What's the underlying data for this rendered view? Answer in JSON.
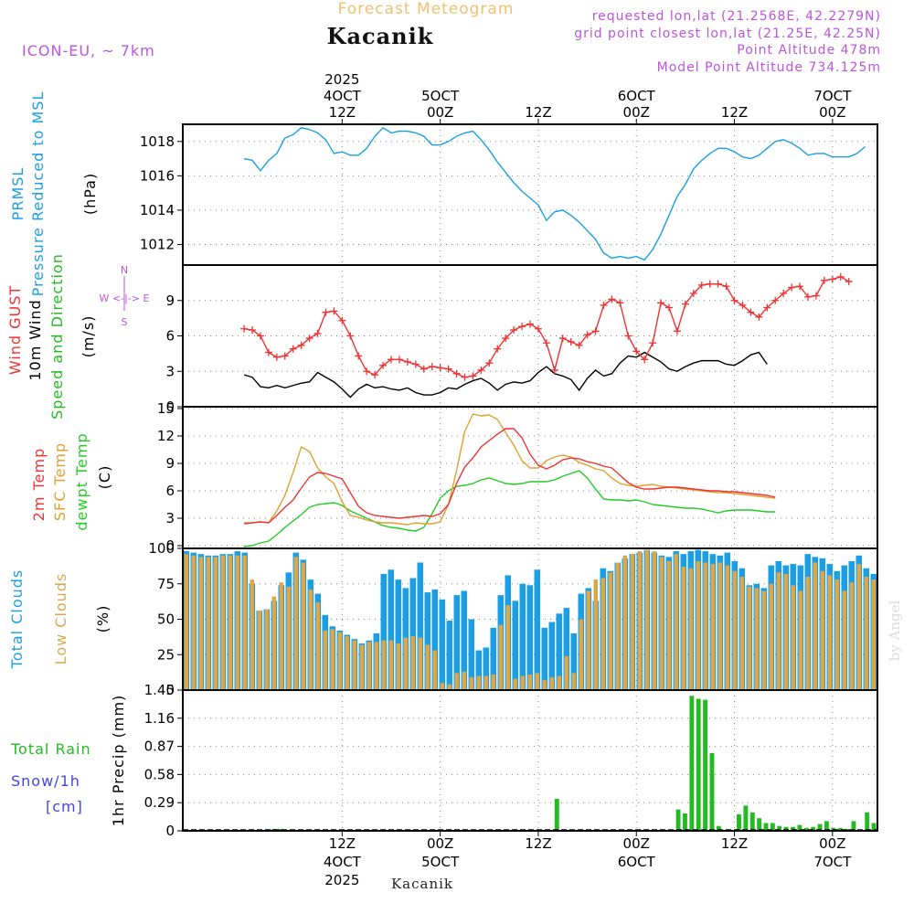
{
  "header": {
    "title": "Forecast Meteogram",
    "location": "Kacanik",
    "model": "ICON-EU, ~ 7km",
    "requested": "requested lon,lat (21.2568E, 42.2279N)",
    "grid_point": "grid point closest lon,lat (21.25E, 42.25N)",
    "point_altitude": "Point Altitude 478m",
    "model_altitude": "Model Point Altitude 734.125m"
  },
  "footer": {
    "location": "Kacanik",
    "watermark": "by Angel"
  },
  "top_axis": [
    {
      "x": 12,
      "lines": [
        "2025",
        "4OCT",
        "12Z"
      ]
    },
    {
      "x": 24,
      "lines": [
        "5OCT",
        "00Z"
      ]
    },
    {
      "x": 36,
      "lines": [
        "12Z"
      ]
    },
    {
      "x": 48,
      "lines": [
        "6OCT",
        "00Z"
      ]
    },
    {
      "x": 60,
      "lines": [
        "12Z"
      ]
    },
    {
      "x": 72,
      "lines": [
        "7OCT",
        "00Z"
      ]
    }
  ],
  "bottom_axis": [
    {
      "x": 12,
      "lines": [
        "12Z",
        "4OCT",
        "2025"
      ]
    },
    {
      "x": 24,
      "lines": [
        "00Z",
        "5OCT"
      ]
    },
    {
      "x": 36,
      "lines": [
        "12Z"
      ]
    },
    {
      "x": 48,
      "lines": [
        "00Z",
        "6OCT"
      ]
    },
    {
      "x": 60,
      "lines": [
        "12Z"
      ]
    },
    {
      "x": 72,
      "lines": [
        "00Z",
        "7OCT"
      ]
    }
  ],
  "colors": {
    "pressure": "#1a9fe6",
    "gust": "#ee3333",
    "wind": "#000000",
    "wind_dir": "#22bb22",
    "temp2m": "#ee3333",
    "sfc": "#e0a030",
    "dew": "#22cc22",
    "total_clouds": "#1a9fe6",
    "low_clouds": "#d9a84e",
    "rain": "#22bb22",
    "snow": "#4444ee",
    "header_meta": "#bb55dd",
    "title": "#f0c070"
  },
  "chart_data": [
    {
      "type": "line",
      "title": "PRMSL Pressure Reduced to MSL",
      "ylabel_lines": [
        "PRMSL",
        "Pressure Reduced to MSL"
      ],
      "unit": "(hPa)",
      "ylim": [
        1010.8,
        1019.0
      ],
      "yticks": [
        "1012",
        "1014",
        "1016",
        "1018"
      ],
      "x_start": 0,
      "x_step": 1,
      "values": [
        1017.0,
        1016.9,
        1016.3,
        1016.9,
        1017.3,
        1018.2,
        1018.4,
        1018.8,
        1018.7,
        1018.5,
        1018.1,
        1017.3,
        1017.4,
        1017.2,
        1017.2,
        1017.6,
        1018.3,
        1018.8,
        1018.5,
        1018.6,
        1018.6,
        1018.5,
        1018.3,
        1017.8,
        1017.8,
        1018.0,
        1018.3,
        1018.5,
        1018.6,
        1018.1,
        1017.5,
        1016.8,
        1016.2,
        1015.6,
        1015.1,
        1014.7,
        1014.3,
        1013.4,
        1013.9,
        1014.0,
        1013.7,
        1013.3,
        1012.8,
        1012.3,
        1011.5,
        1011.2,
        1011.3,
        1011.2,
        1011.3,
        1011.1,
        1011.7,
        1012.6,
        1013.7,
        1014.8,
        1015.5,
        1016.4,
        1016.9,
        1017.3,
        1017.6,
        1017.6,
        1017.4,
        1017.1,
        1017.0,
        1017.2,
        1017.6,
        1018.0,
        1018.1,
        1017.9,
        1017.6,
        1017.2,
        1017.3,
        1017.3,
        1017.1,
        1017.1,
        1017.1,
        1017.3,
        1017.7
      ]
    },
    {
      "type": "line",
      "title": "Wind GUST / 10m Wind Speed and Direction",
      "ylabel_lines": [
        "Wind GUST",
        "10m Wind",
        "Speed and Direction"
      ],
      "unit": "(m/s)",
      "compass": [
        "N",
        "W <-|-> E",
        "S"
      ],
      "ylim": [
        0,
        12
      ],
      "yticks": [
        "0",
        "3",
        "6",
        "9"
      ],
      "x_start": 0,
      "x_step": 1,
      "series": [
        {
          "name": "Wind GUST",
          "values": [
            6.6,
            6.5,
            6.0,
            4.6,
            4.2,
            4.3,
            4.9,
            5.2,
            5.8,
            6.2,
            8.0,
            8.1,
            7.3,
            6.0,
            4.3,
            3.0,
            2.7,
            3.5,
            4.0,
            4.0,
            3.8,
            3.6,
            3.2,
            3.4,
            3.3,
            3.2,
            2.8,
            2.5,
            2.6,
            3.1,
            3.7,
            4.9,
            5.8,
            6.5,
            6.8,
            7.0,
            6.6,
            5.4,
            3.1,
            5.8,
            5.5,
            5.2,
            6.1,
            6.4,
            8.6,
            9.1,
            8.8,
            6.0,
            4.7,
            4.0,
            5.4,
            8.8,
            8.4,
            6.4,
            8.7,
            9.6,
            10.3,
            10.4,
            10.4,
            10.2,
            9.0,
            8.6,
            8.0,
            7.6,
            8.4,
            9.0,
            9.6,
            10.1,
            10.2,
            9.3,
            9.4,
            10.7,
            10.8,
            11.0,
            10.6
          ]
        },
        {
          "name": "10m Wind",
          "values": [
            2.7,
            2.5,
            1.7,
            1.6,
            1.8,
            1.6,
            1.8,
            2.0,
            2.1,
            2.9,
            2.5,
            2.1,
            1.5,
            0.8,
            1.5,
            1.9,
            1.6,
            1.7,
            1.5,
            1.4,
            1.6,
            1.2,
            1.0,
            1.0,
            1.2,
            1.6,
            1.5,
            1.9,
            2.2,
            2.4,
            2.0,
            1.4,
            1.9,
            2.1,
            2.0,
            2.2,
            2.9,
            3.4,
            2.8,
            2.6,
            2.3,
            1.4,
            2.4,
            3.1,
            2.6,
            2.8,
            3.7,
            4.3,
            4.2,
            4.6,
            4.2,
            3.8,
            3.2,
            3.0,
            3.4,
            3.7,
            3.9,
            3.9,
            3.9,
            3.6,
            3.5,
            3.9,
            4.4,
            4.6,
            3.6
          ]
        },
        {
          "name": "10m Wind Direction",
          "values": []
        }
      ]
    },
    {
      "type": "line",
      "title": "2m Temp / SFC Temp / dewpt Temp",
      "ylabel_lines": [
        "2m Temp",
        "SFC Temp",
        "dewpt Temp"
      ],
      "unit": "(C)",
      "ylim": [
        -0.3,
        15.2
      ],
      "yticks": [
        "0",
        "3",
        "6",
        "9",
        "12",
        "15"
      ],
      "x_start": 0,
      "x_step": 1,
      "series": [
        {
          "name": "2m Temp",
          "values": [
            2.4,
            2.5,
            2.6,
            2.5,
            3.3,
            4.2,
            5.0,
            6.3,
            7.5,
            8.0,
            7.9,
            7.6,
            7.3,
            5.8,
            4.3,
            3.6,
            3.3,
            3.2,
            3.1,
            3.0,
            3.1,
            3.2,
            3.3,
            3.2,
            3.5,
            4.5,
            6.8,
            8.6,
            9.6,
            10.8,
            11.5,
            12.2,
            12.8,
            12.8,
            11.8,
            10.0,
            8.8,
            8.4,
            8.8,
            9.4,
            9.6,
            9.5,
            9.2,
            9.0,
            8.7,
            8.5,
            7.7,
            6.9,
            6.4,
            6.2,
            6.2,
            6.3,
            6.4,
            6.4,
            6.3,
            6.2,
            6.1,
            6.0,
            6.0,
            5.9,
            5.9,
            5.8,
            5.7,
            5.6,
            5.5,
            5.3
          ]
        },
        {
          "name": "SFC Temp",
          "values": [
            2.5,
            2.5,
            2.6,
            2.5,
            3.8,
            5.5,
            8.0,
            10.8,
            10.3,
            8.5,
            7.5,
            6.8,
            4.8,
            3.3,
            3.1,
            2.8,
            2.6,
            2.5,
            2.5,
            2.4,
            2.3,
            2.5,
            2.4,
            2.4,
            2.6,
            4.5,
            8.2,
            12.5,
            14.4,
            14.2,
            14.3,
            13.8,
            12.4,
            11.0,
            9.3,
            8.5,
            8.5,
            9.3,
            9.7,
            9.9,
            9.7,
            9.1,
            8.8,
            8.4,
            8.2,
            7.4,
            6.8,
            6.6,
            6.5,
            6.6,
            6.7,
            6.5,
            6.4,
            6.3,
            6.2,
            6.1,
            6.0,
            5.9,
            5.8,
            5.8,
            5.7,
            5.6,
            5.5,
            5.4,
            5.3,
            5.2
          ]
        },
        {
          "name": "dewpt Temp",
          "values": [
            -0.1,
            0.0,
            0.3,
            0.5,
            1.2,
            2.0,
            2.7,
            3.4,
            4.2,
            4.5,
            4.6,
            4.7,
            4.4,
            3.8,
            3.4,
            3.0,
            2.6,
            2.2,
            2.0,
            1.9,
            1.7,
            1.6,
            2.0,
            3.5,
            5.2,
            6.0,
            6.5,
            6.6,
            6.8,
            7.2,
            7.4,
            7.1,
            6.8,
            6.7,
            6.8,
            7.0,
            7.0,
            7.0,
            7.2,
            7.6,
            7.9,
            8.2,
            7.4,
            6.2,
            5.1,
            5.0,
            5.0,
            4.9,
            5.0,
            4.8,
            4.5,
            4.4,
            4.3,
            4.2,
            4.1,
            4.1,
            4.0,
            3.8,
            3.6,
            3.8,
            3.9,
            3.9,
            3.9,
            3.8,
            3.7,
            3.7
          ]
        }
      ]
    },
    {
      "type": "bar",
      "title": "Total Clouds / Low Clouds",
      "ylabel_lines": [
        "Total Clouds",
        "Low Clouds"
      ],
      "unit": "(%)",
      "ylim": [
        0,
        100
      ],
      "yticks": [
        "0",
        "25",
        "50",
        "75",
        "100"
      ],
      "x_start": 0,
      "x_step": 1,
      "series": [
        {
          "name": "Total Clouds",
          "values": [
            98,
            97,
            96,
            95,
            95,
            96,
            96,
            98,
            97,
            75,
            56,
            57,
            63,
            74,
            83,
            97,
            92,
            78,
            68,
            53,
            45,
            42,
            39,
            36,
            33,
            35,
            40,
            82,
            85,
            78,
            72,
            79,
            90,
            69,
            71,
            64,
            49,
            67,
            70,
            50,
            28,
            30,
            44,
            67,
            81,
            63,
            75,
            74,
            85,
            44,
            48,
            54,
            58,
            40,
            68,
            72,
            63,
            86,
            84,
            90,
            93,
            96,
            97,
            99,
            97,
            95,
            94,
            98,
            96,
            98,
            99,
            98,
            96,
            95,
            97,
            91,
            86,
            74,
            75,
            72,
            88,
            91,
            88,
            89,
            88,
            96,
            94,
            93,
            89,
            84,
            88,
            91,
            95,
            86,
            82
          ]
        },
        {
          "name": "Low Clouds",
          "values": [
            96,
            95,
            94,
            94,
            94,
            95,
            95,
            95,
            95,
            78,
            56,
            57,
            66,
            76,
            73,
            94,
            90,
            71,
            62,
            42,
            43,
            41,
            38,
            35,
            32,
            34,
            34,
            35,
            35,
            33,
            37,
            38,
            37,
            32,
            28,
            5,
            4,
            12,
            13,
            9,
            10,
            10,
            11,
            46,
            60,
            8,
            10,
            11,
            12,
            7,
            9,
            10,
            24,
            12,
            50,
            70,
            78,
            79,
            83,
            90,
            95,
            96,
            98,
            99,
            98,
            94,
            91,
            96,
            87,
            86,
            91,
            90,
            89,
            90,
            88,
            84,
            80,
            73,
            72,
            70,
            75,
            83,
            82,
            74,
            70,
            80,
            90,
            84,
            81,
            78,
            70,
            76,
            89,
            80,
            78
          ]
        }
      ]
    },
    {
      "type": "bar",
      "title": "1hr Precip (mm)",
      "ylabel_lines": [
        "1hr Precip (mm)"
      ],
      "side_labels": [
        "Total Rain",
        "Snow/1h",
        "[cm]"
      ],
      "ylim": [
        0,
        1.45
      ],
      "yticks": [
        "0",
        "0.29",
        "0.58",
        "0.87",
        "1.16",
        "1.45"
      ],
      "bar_x_start": 0,
      "bar_x_step": 1,
      "series": [
        {
          "name": "Total Rain",
          "values": [
            0,
            0,
            0,
            0,
            0,
            0,
            0,
            0,
            0,
            0,
            0,
            0,
            0,
            0.02,
            0.02,
            0,
            0,
            0,
            0,
            0,
            0,
            0,
            0,
            0,
            0,
            0,
            0,
            0,
            0,
            0,
            0,
            0,
            0,
            0,
            0,
            0,
            0,
            0,
            0,
            0,
            0,
            0,
            0,
            0,
            0,
            0,
            0,
            0,
            0,
            0,
            0,
            0,
            0,
            0,
            0,
            0.33,
            0,
            0,
            0,
            0,
            0,
            0,
            0,
            0,
            0,
            0,
            0,
            0,
            0,
            0,
            0,
            0,
            0,
            0.22,
            0.18,
            1.39,
            1.36,
            1.35,
            0.8,
            0.05,
            0,
            0,
            0.17,
            0.26,
            0.19,
            0.13,
            0.08,
            0.08,
            0.05,
            0.04,
            0.04,
            0.06,
            0.03,
            0.04,
            0.07,
            0.1,
            0.03,
            0.03,
            0.02,
            0.1,
            0,
            0.19,
            0.08
          ]
        }
      ]
    }
  ]
}
